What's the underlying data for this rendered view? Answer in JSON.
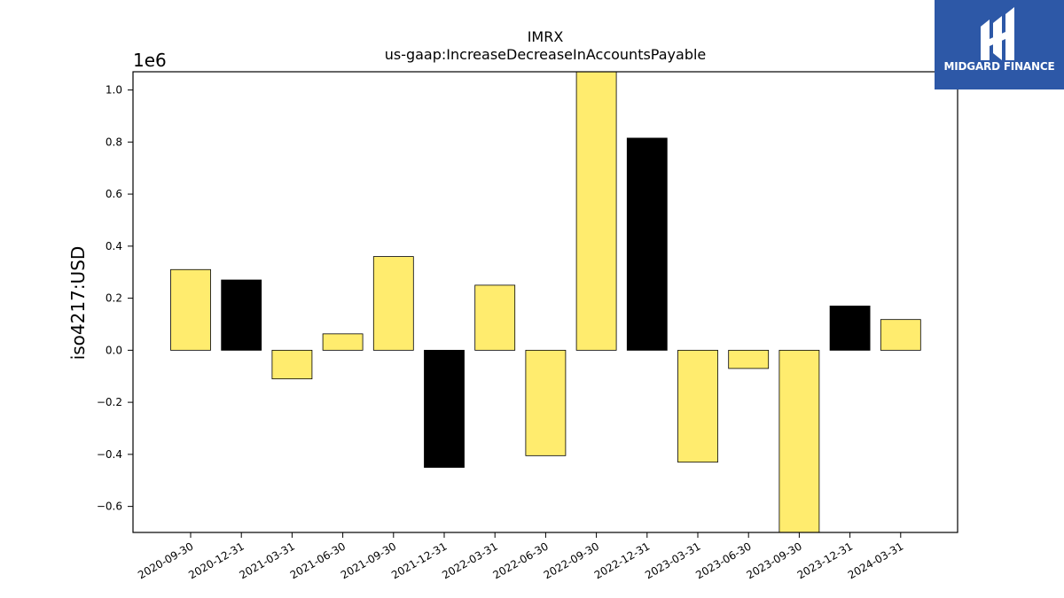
{
  "brand": {
    "name": "MIDGARD FINANCE",
    "color": "#2d58a7"
  },
  "colors": {
    "positive_bar": "#ffec6e",
    "highlight_bar": "#000000",
    "edge": "#000000"
  },
  "chart_data": {
    "type": "bar",
    "title": "IMRX",
    "subtitle": "us-gaap:IncreaseDecreaseInAccountsPayable",
    "ylabel": "iso4217:USD",
    "y_offset_label": "1e6",
    "ylim": [
      -0.7,
      1.07
    ],
    "yticks": [
      "1.0",
      "0.8",
      "0.6",
      "0.4",
      "0.2",
      "0.0",
      "−0.2",
      "−0.4",
      "−0.6"
    ],
    "ytick_values": [
      1.0,
      0.8,
      0.6,
      0.4,
      0.2,
      0.0,
      -0.2,
      -0.4,
      -0.6
    ],
    "categories": [
      "2020-09-30",
      "2020-12-31",
      "2021-03-31",
      "2021-06-30",
      "2021-09-30",
      "2021-12-31",
      "2022-03-31",
      "2022-06-30",
      "2022-09-30",
      "2022-12-31",
      "2023-03-31",
      "2023-06-30",
      "2023-09-30",
      "2023-12-31",
      "2024-03-31"
    ],
    "values": [
      0.31,
      0.27,
      -0.11,
      0.063,
      0.36,
      -0.45,
      0.25,
      -0.405,
      1.07,
      0.815,
      -0.43,
      -0.07,
      -0.7,
      0.17,
      0.118
    ],
    "bar_colors": [
      "yellow",
      "black",
      "yellow",
      "yellow",
      "yellow",
      "black",
      "yellow",
      "yellow",
      "yellow",
      "black",
      "yellow",
      "yellow",
      "yellow",
      "black",
      "yellow"
    ],
    "grid": false,
    "legend": "none"
  }
}
